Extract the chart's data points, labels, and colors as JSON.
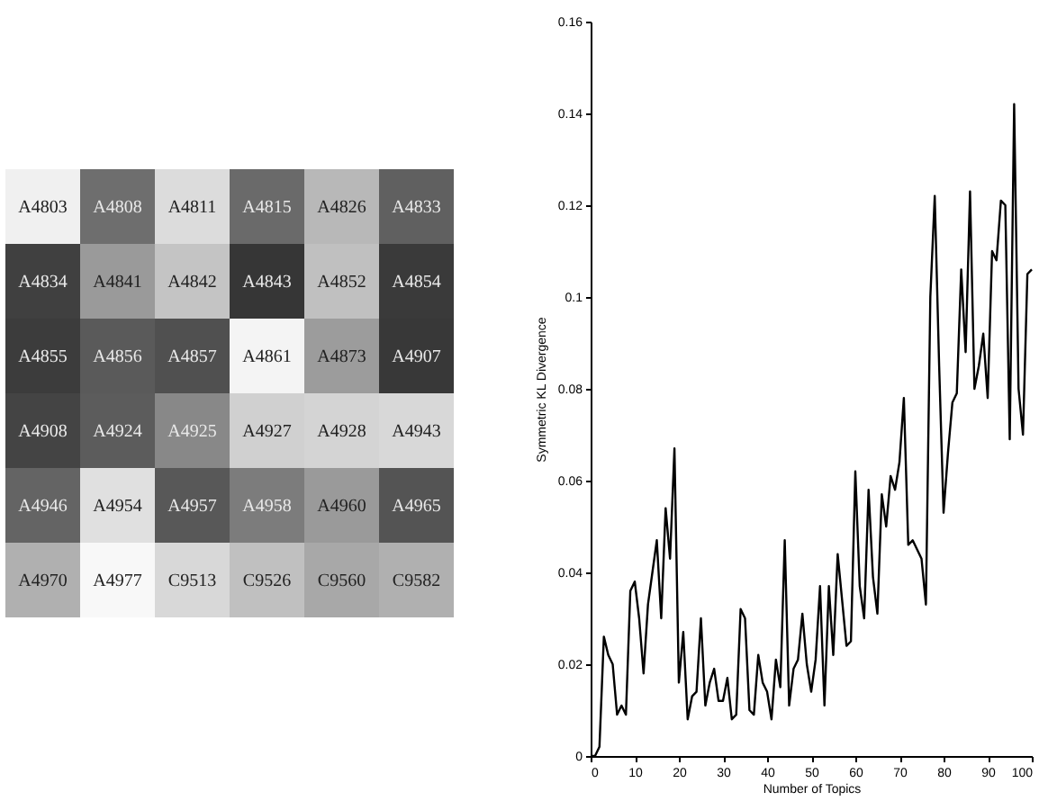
{
  "chart_data": [
    {
      "type": "other",
      "cell_labels": [
        [
          "A4803",
          "A4808",
          "A4811",
          "A4815",
          "A4826",
          "A4833"
        ],
        [
          "A4834",
          "A4841",
          "A4842",
          "A4843",
          "A4852",
          "A4854"
        ],
        [
          "A4855",
          "A4856",
          "A4857",
          "A4861",
          "A4873",
          "A4907"
        ],
        [
          "A4908",
          "A4924",
          "A4925",
          "A4927",
          "A4928",
          "A4943"
        ],
        [
          "A4946",
          "A4954",
          "A4957",
          "A4958",
          "A4960",
          "A4965"
        ],
        [
          "A4970",
          "A4977",
          "C9513",
          "C9526",
          "C9560",
          "C9582"
        ]
      ],
      "colors": [
        "#f0f0f0",
        "#6e6e6e",
        "#dcdcdc",
        "#6a6a6a",
        "#b8b8b8",
        "#606060",
        "#404040",
        "#9a9a9a",
        "#c4c4c4",
        "#363636",
        "#c0c0c0",
        "#3a3a3a",
        "#3c3c3c",
        "#5a5a5a",
        "#505050",
        "#f4f4f4",
        "#9c9c9c",
        "#383838",
        "#444444",
        "#5c5c5c",
        "#888888",
        "#d0d0d0",
        "#d4d4d4",
        "#d8d8d8",
        "#646464",
        "#e0e0e0",
        "#585858",
        "#7c7c7c",
        "#9a9a9a",
        "#545454",
        "#b0b0b0",
        "#f8f8f8",
        "#d8d8d8",
        "#c0c0c0",
        "#a8a8a8",
        "#b0b0b0"
      ]
    },
    {
      "type": "line",
      "xlabel": "Number of Topics",
      "ylabel": "Symmetric KL Divergence",
      "xlim": [
        0,
        100
      ],
      "ylim": [
        0,
        0.16
      ],
      "xticks": [
        0,
        10,
        20,
        30,
        40,
        50,
        60,
        70,
        80,
        90,
        100
      ],
      "yticks": [
        0,
        0.02,
        0.04,
        0.06,
        0.08,
        0.1,
        0.12,
        0.14,
        0.16
      ],
      "grid": false,
      "legend": false,
      "marker": "none",
      "line_style": "solid",
      "x": [
        0,
        1,
        2,
        3,
        4,
        5,
        6,
        7,
        8,
        9,
        10,
        11,
        12,
        13,
        14,
        15,
        16,
        17,
        18,
        19,
        20,
        21,
        22,
        23,
        24,
        25,
        26,
        27,
        28,
        29,
        30,
        31,
        32,
        33,
        34,
        35,
        36,
        37,
        38,
        39,
        40,
        41,
        42,
        43,
        44,
        45,
        46,
        47,
        48,
        49,
        50,
        51,
        52,
        53,
        54,
        55,
        56,
        57,
        58,
        59,
        60,
        61,
        62,
        63,
        64,
        65,
        66,
        67,
        68,
        69,
        70,
        71,
        72,
        73,
        74,
        75,
        76,
        77,
        78,
        79,
        80,
        81,
        82,
        83,
        84,
        85,
        86,
        87,
        88,
        89,
        90,
        91,
        92,
        93,
        94,
        95,
        96,
        97,
        98,
        99,
        100
      ],
      "series": [
        {
          "color": "#000000",
          "values": [
            0,
            0,
            0.002,
            0.026,
            0.022,
            0.02,
            0.009,
            0.011,
            0.009,
            0.036,
            0.038,
            0.03,
            0.018,
            0.033,
            0.04,
            0.047,
            0.03,
            0.054,
            0.043,
            0.067,
            0.016,
            0.027,
            0.008,
            0.013,
            0.014,
            0.03,
            0.011,
            0.016,
            0.019,
            0.012,
            0.012,
            0.017,
            0.008,
            0.009,
            0.032,
            0.03,
            0.01,
            0.009,
            0.022,
            0.016,
            0.014,
            0.008,
            0.021,
            0.015,
            0.047,
            0.011,
            0.019,
            0.021,
            0.031,
            0.02,
            0.014,
            0.021,
            0.037,
            0.011,
            0.037,
            0.022,
            0.044,
            0.034,
            0.024,
            0.025,
            0.062,
            0.037,
            0.03,
            0.058,
            0.039,
            0.031,
            0.057,
            0.05,
            0.061,
            0.058,
            0.064,
            0.078,
            0.046,
            0.047,
            0.045,
            0.043,
            0.033,
            0.1,
            0.122,
            0.085,
            0.053,
            0.066,
            0.077,
            0.079,
            0.106,
            0.088,
            0.123,
            0.08,
            0.085,
            0.092,
            0.078,
            0.11,
            0.108,
            0.121,
            0.12,
            0.069,
            0.142,
            0.08,
            0.07,
            0.105,
            0.106
          ]
        }
      ]
    }
  ]
}
